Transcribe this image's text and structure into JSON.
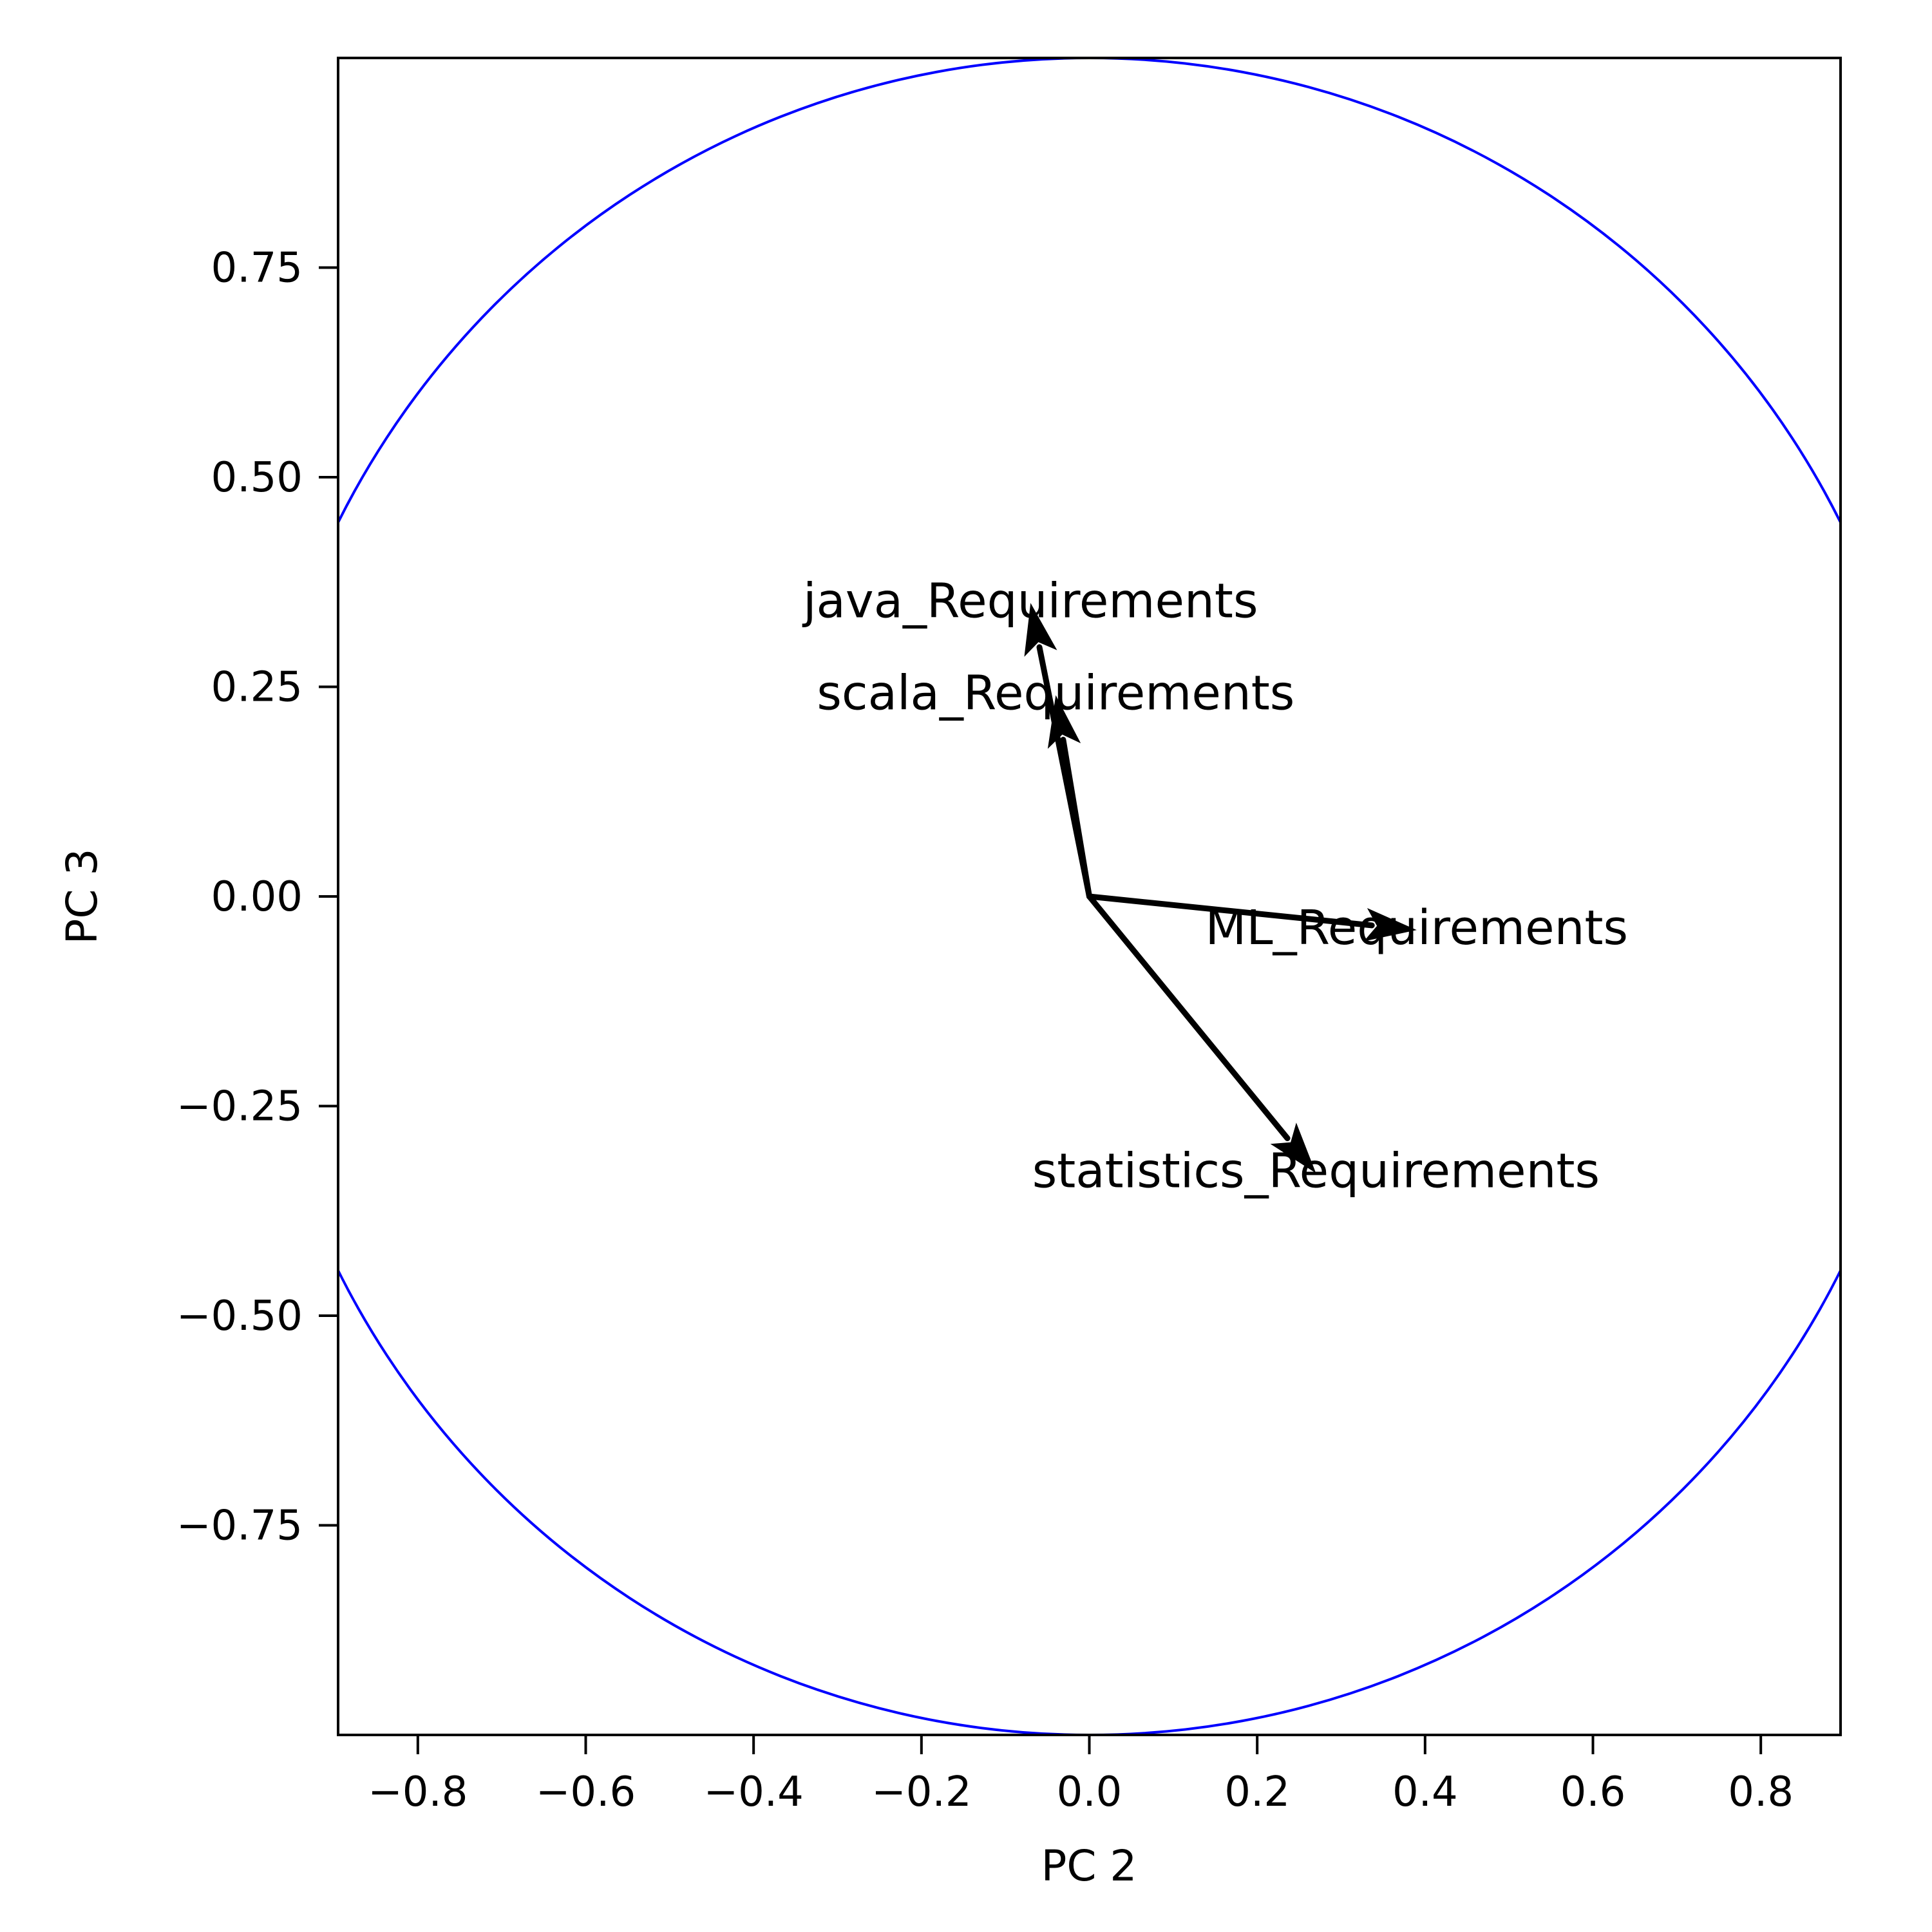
{
  "chart_data": {
    "type": "scatter",
    "subtype": "pca-correlation-circle",
    "title": "",
    "xlabel": "PC 2",
    "ylabel": "PC 3",
    "xlim": [
      -0.895,
      0.895
    ],
    "ylim": [
      -1.0,
      1.0
    ],
    "xticks": [
      -0.8,
      -0.6,
      -0.4,
      -0.2,
      0.0,
      0.2,
      0.4,
      0.6,
      0.8
    ],
    "xtick_labels": [
      "−0.8",
      "−0.6",
      "−0.4",
      "−0.2",
      "0.0",
      "0.2",
      "0.4",
      "0.6",
      "0.8"
    ],
    "yticks": [
      0.75,
      0.5,
      0.25,
      0.0,
      -0.25,
      -0.5,
      -0.75
    ],
    "ytick_labels": [
      "0.75",
      "0.50",
      "0.25",
      "0.00",
      "−0.25",
      "−0.50",
      "−0.75"
    ],
    "grid": false,
    "circle": {
      "radius": 1.0,
      "color": "#0000ff"
    },
    "arrow_color": "#000000",
    "vectors": [
      {
        "name": "java_Requirements",
        "x": -0.07,
        "y": 0.35
      },
      {
        "name": "scala_Requirements",
        "x": -0.04,
        "y": 0.24
      },
      {
        "name": "ML_Requirements",
        "x": 0.39,
        "y": -0.04
      },
      {
        "name": "statistics_Requirements",
        "x": 0.27,
        "y": -0.33
      }
    ]
  }
}
